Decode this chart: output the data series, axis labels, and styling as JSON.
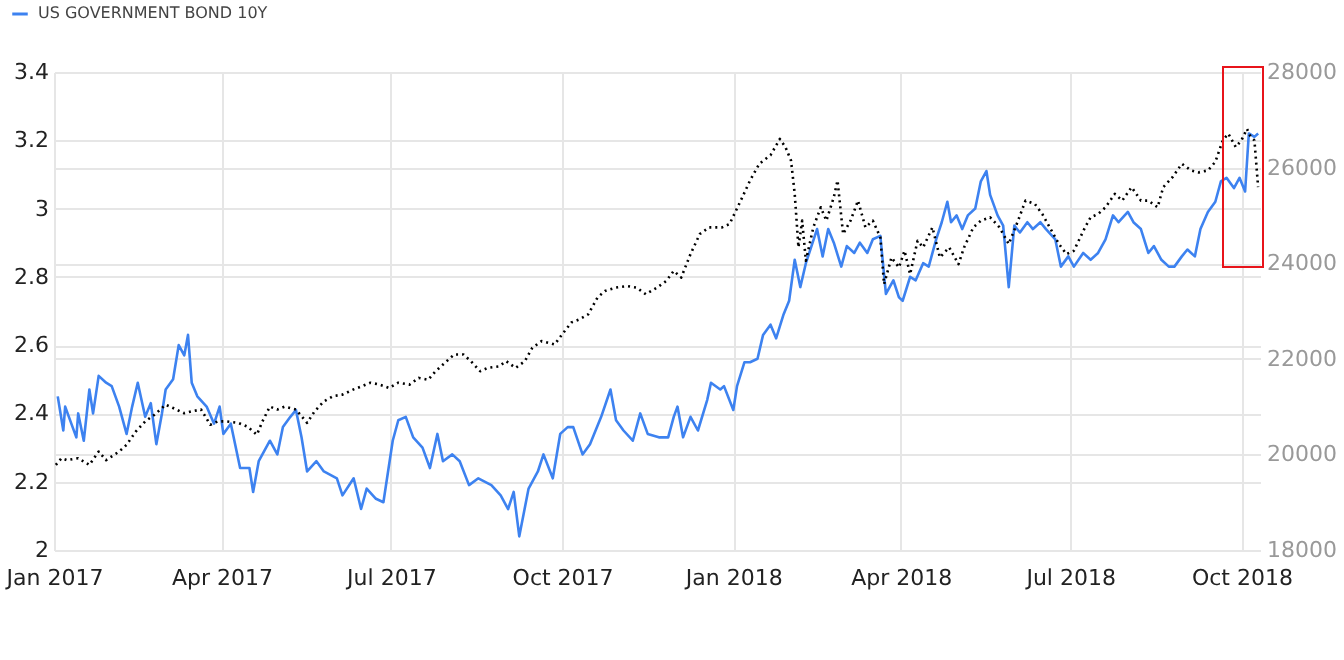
{
  "chart_data": {
    "type": "line",
    "xlim": [
      "2017-01-01",
      "2018-10-11"
    ],
    "xticks": [
      {
        "value": "2017-01-01",
        "label": "Jan 2017"
      },
      {
        "value": "2017-04-01",
        "label": "Apr 2017"
      },
      {
        "value": "2017-07-01",
        "label": "Jul 2017"
      },
      {
        "value": "2017-10-01",
        "label": "Oct 2017"
      },
      {
        "value": "2018-01-01",
        "label": "Jan 2018"
      },
      {
        "value": "2018-04-01",
        "label": "Apr 2018"
      },
      {
        "value": "2018-07-01",
        "label": "Jul 2018"
      },
      {
        "value": "2018-10-01",
        "label": "Oct 2018"
      }
    ],
    "ylim": [
      2,
      3.4
    ],
    "yticks": [
      2,
      2.2,
      2.4,
      2.6,
      2.8,
      3,
      3.2,
      3.4
    ],
    "y2lim": [
      18000,
      28000
    ],
    "y2ticks": [
      18000,
      20000,
      22000,
      24000,
      26000,
      28000
    ],
    "grid": true,
    "legend": "top left",
    "marker": "none",
    "series": [
      {
        "name": "US GOVERNMENT BOND 10Y",
        "color": "#3d82f0",
        "line_style": "solid",
        "x": [
          "2017-01-03",
          "2017-01-06",
          "2017-01-07",
          "2017-01-11",
          "2017-01-13",
          "2017-01-14",
          "2017-01-17",
          "2017-01-20",
          "2017-01-22",
          "2017-01-25",
          "2017-01-29",
          "2017-02-01",
          "2017-02-05",
          "2017-02-09",
          "2017-02-12",
          "2017-02-15",
          "2017-02-19",
          "2017-02-22",
          "2017-02-25",
          "2017-02-28",
          "2017-03-02",
          "2017-03-06",
          "2017-03-09",
          "2017-03-12",
          "2017-03-14",
          "2017-03-16",
          "2017-03-19",
          "2017-03-24",
          "2017-03-28",
          "2017-03-31",
          "2017-04-02",
          "2017-04-06",
          "2017-04-11",
          "2017-04-16",
          "2017-04-18",
          "2017-04-21",
          "2017-04-24",
          "2017-04-27",
          "2017-05-01",
          "2017-05-04",
          "2017-05-08",
          "2017-05-11",
          "2017-05-14",
          "2017-05-17",
          "2017-05-22",
          "2017-05-26",
          "2017-06-02",
          "2017-06-05",
          "2017-06-11",
          "2017-06-15",
          "2017-06-18",
          "2017-06-23",
          "2017-06-27",
          "2017-07-02",
          "2017-07-05",
          "2017-07-09",
          "2017-07-13",
          "2017-07-18",
          "2017-07-22",
          "2017-07-26",
          "2017-07-29",
          "2017-08-03",
          "2017-08-07",
          "2017-08-12",
          "2017-08-17",
          "2017-08-24",
          "2017-08-29",
          "2017-09-02",
          "2017-09-05",
          "2017-09-08",
          "2017-09-13",
          "2017-09-18",
          "2017-09-21",
          "2017-09-26",
          "2017-09-30",
          "2017-10-04",
          "2017-10-07",
          "2017-10-12",
          "2017-10-16",
          "2017-10-22",
          "2017-10-27",
          "2017-10-30",
          "2017-11-03",
          "2017-11-08",
          "2017-11-12",
          "2017-11-16",
          "2017-11-22",
          "2017-11-27",
          "2017-11-30",
          "2017-12-02",
          "2017-12-05",
          "2017-12-09",
          "2017-12-13",
          "2017-12-18",
          "2017-12-20",
          "2017-12-25",
          "2017-12-27",
          "2018-01-01",
          "2018-01-03",
          "2018-01-07",
          "2018-01-10",
          "2018-01-14",
          "2018-01-17",
          "2018-01-21",
          "2018-01-24",
          "2018-01-28",
          "2018-01-31",
          "2018-02-03",
          "2018-02-06",
          "2018-02-09",
          "2018-02-12",
          "2018-02-15",
          "2018-02-18",
          "2018-02-21",
          "2018-02-24",
          "2018-02-28",
          "2018-03-03",
          "2018-03-07",
          "2018-03-10",
          "2018-03-14",
          "2018-03-17",
          "2018-03-21",
          "2018-03-24",
          "2018-03-28",
          "2018-03-31",
          "2018-04-02",
          "2018-04-06",
          "2018-04-09",
          "2018-04-13",
          "2018-04-16",
          "2018-04-20",
          "2018-04-23",
          "2018-04-26",
          "2018-04-28",
          "2018-05-01",
          "2018-05-04",
          "2018-05-07",
          "2018-05-11",
          "2018-05-14",
          "2018-05-17",
          "2018-05-19",
          "2018-05-23",
          "2018-05-26",
          "2018-05-29",
          "2018-06-01",
          "2018-06-04",
          "2018-06-08",
          "2018-06-11",
          "2018-06-15",
          "2018-06-18",
          "2018-06-23",
          "2018-06-26",
          "2018-06-30",
          "2018-07-03",
          "2018-07-08",
          "2018-07-12",
          "2018-07-16",
          "2018-07-20",
          "2018-07-24",
          "2018-07-27",
          "2018-08-01",
          "2018-08-04",
          "2018-08-08",
          "2018-08-12",
          "2018-08-15",
          "2018-08-19",
          "2018-08-23",
          "2018-08-26",
          "2018-08-30",
          "2018-09-02",
          "2018-09-06",
          "2018-09-09",
          "2018-09-13",
          "2018-09-17",
          "2018-09-20",
          "2018-09-23",
          "2018-09-27",
          "2018-09-30",
          "2018-10-03",
          "2018-10-05",
          "2018-10-08",
          "2018-10-10"
        ],
        "values": [
          2.45,
          2.35,
          2.42,
          2.36,
          2.33,
          2.4,
          2.32,
          2.47,
          2.4,
          2.51,
          2.49,
          2.48,
          2.42,
          2.34,
          2.42,
          2.49,
          2.39,
          2.43,
          2.31,
          2.4,
          2.47,
          2.5,
          2.6,
          2.57,
          2.63,
          2.49,
          2.45,
          2.42,
          2.37,
          2.42,
          2.34,
          2.37,
          2.24,
          2.24,
          2.17,
          2.26,
          2.29,
          2.32,
          2.28,
          2.36,
          2.39,
          2.41,
          2.33,
          2.23,
          2.26,
          2.23,
          2.21,
          2.16,
          2.21,
          2.12,
          2.18,
          2.15,
          2.14,
          2.32,
          2.38,
          2.39,
          2.33,
          2.3,
          2.24,
          2.34,
          2.26,
          2.28,
          2.26,
          2.19,
          2.21,
          2.19,
          2.16,
          2.12,
          2.17,
          2.04,
          2.18,
          2.23,
          2.28,
          2.21,
          2.34,
          2.36,
          2.36,
          2.28,
          2.31,
          2.39,
          2.47,
          2.38,
          2.35,
          2.32,
          2.4,
          2.34,
          2.33,
          2.33,
          2.39,
          2.42,
          2.33,
          2.39,
          2.35,
          2.44,
          2.49,
          2.47,
          2.48,
          2.41,
          2.48,
          2.55,
          2.55,
          2.56,
          2.63,
          2.66,
          2.62,
          2.69,
          2.73,
          2.85,
          2.77,
          2.84,
          2.89,
          2.94,
          2.86,
          2.94,
          2.9,
          2.83,
          2.89,
          2.87,
          2.9,
          2.87,
          2.91,
          2.92,
          2.75,
          2.79,
          2.74,
          2.73,
          2.8,
          2.79,
          2.84,
          2.83,
          2.91,
          2.96,
          3.02,
          2.96,
          2.98,
          2.94,
          2.98,
          3.0,
          3.08,
          3.11,
          3.04,
          2.98,
          2.95,
          2.77,
          2.95,
          2.93,
          2.96,
          2.94,
          2.96,
          2.94,
          2.91,
          2.83,
          2.86,
          2.83,
          2.87,
          2.85,
          2.87,
          2.91,
          2.98,
          2.96,
          2.99,
          2.96,
          2.94,
          2.87,
          2.89,
          2.85,
          2.83,
          2.83,
          2.86,
          2.88,
          2.86,
          2.94,
          2.99,
          3.02,
          3.08,
          3.09,
          3.06,
          3.09,
          3.05,
          3.22,
          3.21,
          3.22
        ]
      },
      {
        "color": "#000000",
        "axis": "y2",
        "line_style": "dotted",
        "x": [
          "2017-01-02",
          "2017-01-05",
          "2017-01-08",
          "2017-01-14",
          "2017-01-20",
          "2017-01-25",
          "2017-01-29",
          "2017-02-05",
          "2017-02-09",
          "2017-02-14",
          "2017-02-19",
          "2017-02-24",
          "2017-03-02",
          "2017-03-06",
          "2017-03-12",
          "2017-03-16",
          "2017-03-21",
          "2017-03-26",
          "2017-03-30",
          "2017-04-04",
          "2017-04-10",
          "2017-04-15",
          "2017-04-20",
          "2017-04-23",
          "2017-04-27",
          "2017-05-01",
          "2017-05-05",
          "2017-05-11",
          "2017-05-17",
          "2017-05-21",
          "2017-05-26",
          "2017-05-31",
          "2017-06-05",
          "2017-06-11",
          "2017-06-15",
          "2017-06-20",
          "2017-06-25",
          "2017-06-30",
          "2017-07-05",
          "2017-07-11",
          "2017-07-16",
          "2017-07-21",
          "2017-07-25",
          "2017-07-29",
          "2017-08-04",
          "2017-08-09",
          "2017-08-13",
          "2017-08-18",
          "2017-08-22",
          "2017-08-28",
          "2017-09-01",
          "2017-09-06",
          "2017-09-11",
          "2017-09-15",
          "2017-09-20",
          "2017-09-27",
          "2017-10-01",
          "2017-10-06",
          "2017-10-10",
          "2017-10-15",
          "2017-10-20",
          "2017-10-24",
          "2017-10-30",
          "2017-11-05",
          "2017-11-10",
          "2017-11-15",
          "2017-11-21",
          "2017-11-26",
          "2017-11-30",
          "2017-12-04",
          "2017-12-09",
          "2017-12-14",
          "2017-12-19",
          "2017-12-26",
          "2017-12-30",
          "2018-01-05",
          "2018-01-10",
          "2018-01-15",
          "2018-01-21",
          "2018-01-26",
          "2018-01-29",
          "2018-02-01",
          "2018-02-03",
          "2018-02-05",
          "2018-02-07",
          "2018-02-09",
          "2018-02-13",
          "2018-02-17",
          "2018-02-20",
          "2018-02-24",
          "2018-02-26",
          "2018-03-01",
          "2018-03-05",
          "2018-03-09",
          "2018-03-13",
          "2018-03-17",
          "2018-03-21",
          "2018-03-23",
          "2018-03-27",
          "2018-03-31",
          "2018-04-03",
          "2018-04-06",
          "2018-04-10",
          "2018-04-13",
          "2018-04-18",
          "2018-04-22",
          "2018-04-27",
          "2018-05-02",
          "2018-05-05",
          "2018-05-10",
          "2018-05-14",
          "2018-05-19",
          "2018-05-24",
          "2018-05-29",
          "2018-06-03",
          "2018-06-07",
          "2018-06-12",
          "2018-06-16",
          "2018-06-21",
          "2018-06-25",
          "2018-06-29",
          "2018-07-03",
          "2018-07-09",
          "2018-07-12",
          "2018-07-16",
          "2018-07-20",
          "2018-07-25",
          "2018-07-29",
          "2018-08-03",
          "2018-08-08",
          "2018-08-12",
          "2018-08-17",
          "2018-08-20",
          "2018-08-25",
          "2018-08-30",
          "2018-09-04",
          "2018-09-08",
          "2018-09-13",
          "2018-09-17",
          "2018-09-21",
          "2018-09-24",
          "2018-09-28",
          "2018-10-01",
          "2018-10-04",
          "2018-10-06",
          "2018-10-08",
          "2018-10-10"
        ],
        "values": [
          19780,
          19920,
          19880,
          19920,
          19780,
          20060,
          19880,
          20060,
          20200,
          20480,
          20690,
          20830,
          21040,
          20970,
          20860,
          20900,
          20940,
          20620,
          20690,
          20690,
          20660,
          20580,
          20410,
          20690,
          21000,
          20940,
          21000,
          20940,
          20660,
          20900,
          21110,
          21220,
          21250,
          21360,
          21420,
          21500,
          21460,
          21390,
          21500,
          21460,
          21600,
          21560,
          21740,
          21880,
          22090,
          22090,
          21950,
          21740,
          21810,
          21840,
          21950,
          21810,
          21950,
          22230,
          22370,
          22300,
          22510,
          22760,
          22820,
          22930,
          23280,
          23420,
          23490,
          23520,
          23490,
          23350,
          23490,
          23630,
          23840,
          23700,
          24190,
          24610,
          24750,
          24750,
          24820,
          25310,
          25730,
          26080,
          26260,
          26600,
          26430,
          26150,
          25450,
          24330,
          24890,
          24050,
          24750,
          25170,
          24890,
          25380,
          25730,
          24610,
          24890,
          25310,
          24750,
          24890,
          24540,
          23560,
          24120,
          23910,
          24260,
          23770,
          24470,
          24330,
          24750,
          24120,
          24330,
          23980,
          24330,
          24750,
          24890,
          24960,
          24750,
          24400,
          24890,
          25310,
          25240,
          25030,
          24680,
          24400,
          24190,
          24260,
          24750,
          24960,
          25030,
          25170,
          25450,
          25310,
          25590,
          25310,
          25310,
          25170,
          25590,
          25800,
          26080,
          25940,
          25900,
          25940,
          26120,
          26570,
          26710,
          26430,
          26570,
          26810,
          26640,
          26570,
          25590
        ]
      }
    ]
  }
}
